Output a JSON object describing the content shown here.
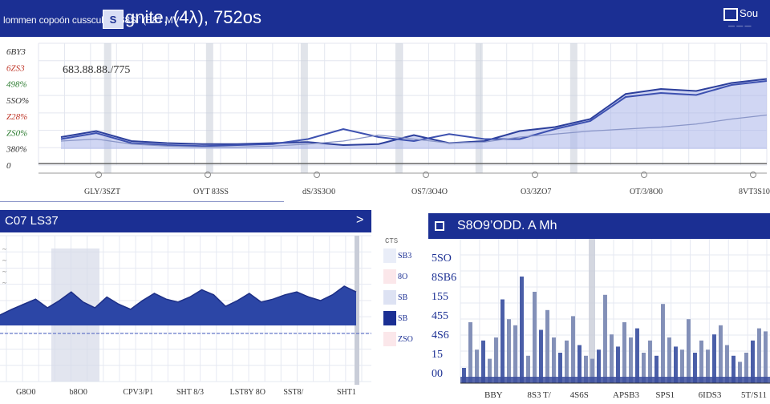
{
  "header": {
    "left_text": "lommen copoón cusscuh  ‘ 1S8SI’ (E87 MV",
    "app_icon_label": "S",
    "title": "gnite, (4λ), 752os",
    "right_text": "Sou",
    "right_sub": "— — —",
    "right_icon": "window-icon"
  },
  "top_chart": {
    "annotation": "683.88.88./775",
    "y_ticks": [
      "6BY3",
      "6ZS3",
      "498%",
      "5SO%",
      "Z28%",
      "ZS0%",
      "380%",
      "0"
    ],
    "y_tick_colors": [
      "#333",
      "#c0392b",
      "#2e7d32",
      "#333",
      "#c0392b",
      "#2e7d32",
      "#333",
      "#333"
    ],
    "x_ticks": [
      "GLY/3SZT",
      "OYT 83SS",
      "dS/3S3O0",
      "OS7/3O4O",
      "O3/3ZO7",
      "OT/3/8O0",
      "8VT3S10"
    ]
  },
  "left_panel": {
    "title": "C07 LS37",
    "arrow": ">",
    "y_ticks": [
      "~",
      "~",
      "~",
      "~"
    ],
    "x_ticks": [
      "G8O0",
      "b8O0",
      "CPV3/P1",
      "SHT 8/3",
      "LST8Y 8O",
      "SST8/",
      "SHT1"
    ]
  },
  "legend": {
    "header": "CTS",
    "items": [
      {
        "label": "SB3",
        "color": "#e9edf8"
      },
      {
        "label": "8O",
        "color": "#fbe7ea"
      },
      {
        "label": "SB",
        "color": "#dde2f3"
      },
      {
        "label": "SB",
        "color": "#1b2f93"
      },
      {
        "label": "ZSO",
        "color": "#fbe7ea"
      }
    ]
  },
  "right_panel": {
    "title": "S8O9’ODD. A Mh",
    "icon": "square-icon",
    "y_ticks": [
      "5SO",
      "8SB6",
      "155",
      "455",
      "4S6",
      "15",
      "00"
    ],
    "x_ticks": [
      "BBY",
      "8S3 T/",
      "4S6S",
      "APSB3",
      "SPS1",
      "6IDS3",
      "5T/S11"
    ]
  },
  "chart_data": [
    {
      "type": "line",
      "title": "",
      "series": [
        {
          "values": [
            12,
            18,
            8,
            6,
            5,
            5,
            6,
            7,
            4,
            5,
            14,
            6,
            8,
            18,
            22,
            30,
            55,
            60,
            58,
            66,
            70
          ]
        },
        {
          "values": [
            10,
            16,
            6,
            4,
            3,
            4,
            5,
            10,
            20,
            12,
            8,
            15,
            10,
            10,
            20,
            28,
            52,
            56,
            54,
            64,
            68
          ]
        },
        {
          "values": [
            8,
            10,
            5,
            3,
            2,
            2,
            3,
            5,
            8,
            14,
            10,
            6,
            7,
            12,
            15,
            18,
            20,
            22,
            25,
            30,
            34
          ]
        }
      ]
    },
    {
      "type": "area",
      "title": "",
      "values": [
        30,
        38,
        45,
        52,
        40,
        50,
        62,
        48,
        40,
        55,
        45,
        38,
        50,
        60,
        52,
        48,
        55,
        65,
        58,
        42,
        50,
        60,
        48,
        52,
        58,
        62,
        55,
        50,
        58,
        70,
        62
      ]
    },
    {
      "type": "bar",
      "title": "",
      "values": [
        10,
        40,
        22,
        28,
        16,
        30,
        55,
        42,
        38,
        70,
        18,
        60,
        35,
        48,
        30,
        20,
        28,
        44,
        25,
        18,
        16,
        22,
        58,
        32,
        24,
        40,
        30,
        36,
        20,
        28,
        18,
        52,
        30,
        24,
        22,
        42,
        20,
        28,
        22,
        32,
        38,
        25,
        18,
        14,
        20,
        28,
        36,
        34
      ]
    }
  ]
}
